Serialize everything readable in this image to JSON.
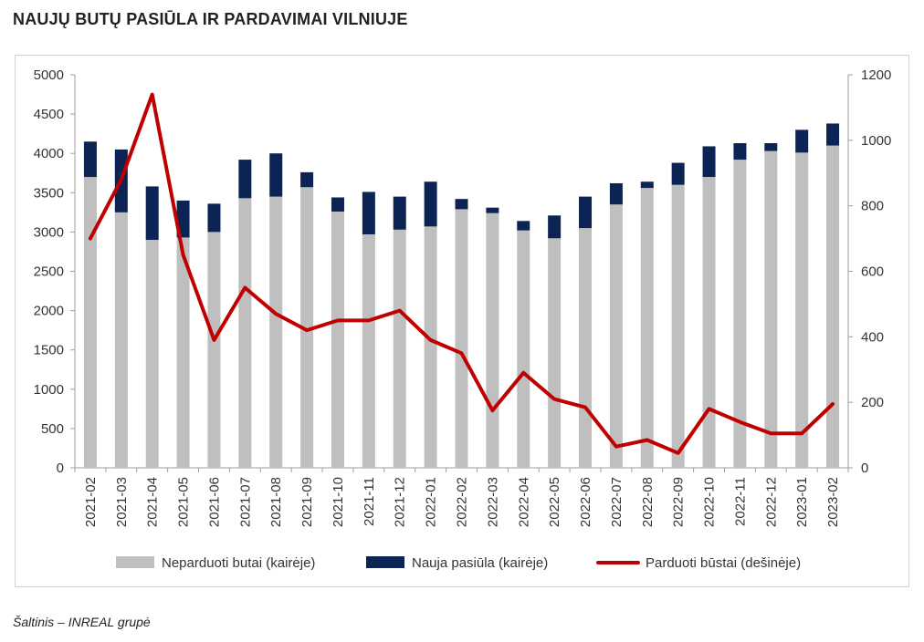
{
  "title": "NAUJŲ BUTŲ PASIŪLA IR PARDAVIMAI VILNIUJE",
  "source": "Šaltinis – INREAL grupė",
  "colors": {
    "unsold": "#bfbfbf",
    "new_supply": "#0b2454",
    "sold": "#c00000",
    "axis": "#9e9e9e"
  },
  "chart_data": {
    "type": "bar",
    "stacked": true,
    "combo_line": true,
    "categories": [
      "2021-02",
      "2021-03",
      "2021-04",
      "2021-05",
      "2021-06",
      "2021-07",
      "2021-08",
      "2021-09",
      "2021-10",
      "2021-11",
      "2021-12",
      "2022-01",
      "2022-02",
      "2022-03",
      "2022-04",
      "2022-05",
      "2022-06",
      "2022-07",
      "2022-08",
      "2022-09",
      "2022-10",
      "2022-11",
      "2022-12",
      "2023-01",
      "2023-02"
    ],
    "series": [
      {
        "name": "Neparduoti butai (kairėje)",
        "kind": "bar",
        "axis": "left",
        "values": [
          3700,
          3250,
          2900,
          2930,
          3000,
          3430,
          3450,
          3570,
          3260,
          2970,
          3030,
          3070,
          3290,
          3240,
          3020,
          2920,
          3050,
          3350,
          3560,
          3600,
          3700,
          3920,
          4030,
          4010,
          4100
        ]
      },
      {
        "name": "Nauja pasiūla (kairėje)",
        "kind": "bar",
        "axis": "left",
        "values": [
          450,
          800,
          680,
          470,
          360,
          490,
          550,
          190,
          180,
          540,
          420,
          570,
          130,
          70,
          120,
          290,
          400,
          270,
          80,
          280,
          390,
          210,
          100,
          290,
          280
        ]
      },
      {
        "name": "Parduoti būstai (dešinėje)",
        "kind": "line",
        "axis": "right",
        "values": [
          700,
          880,
          1140,
          650,
          390,
          550,
          470,
          420,
          450,
          450,
          480,
          390,
          350,
          175,
          290,
          210,
          185,
          65,
          85,
          45,
          180,
          140,
          105,
          105,
          195
        ]
      }
    ],
    "y_left": {
      "min": 0,
      "max": 5000,
      "ticks": [
        0,
        500,
        1000,
        1500,
        2000,
        2500,
        3000,
        3500,
        4000,
        4500,
        5000
      ]
    },
    "y_right": {
      "min": 0,
      "max": 1200,
      "ticks": [
        0,
        200,
        400,
        600,
        800,
        1000,
        1200
      ]
    },
    "grid": false,
    "legend_position": "bottom"
  }
}
